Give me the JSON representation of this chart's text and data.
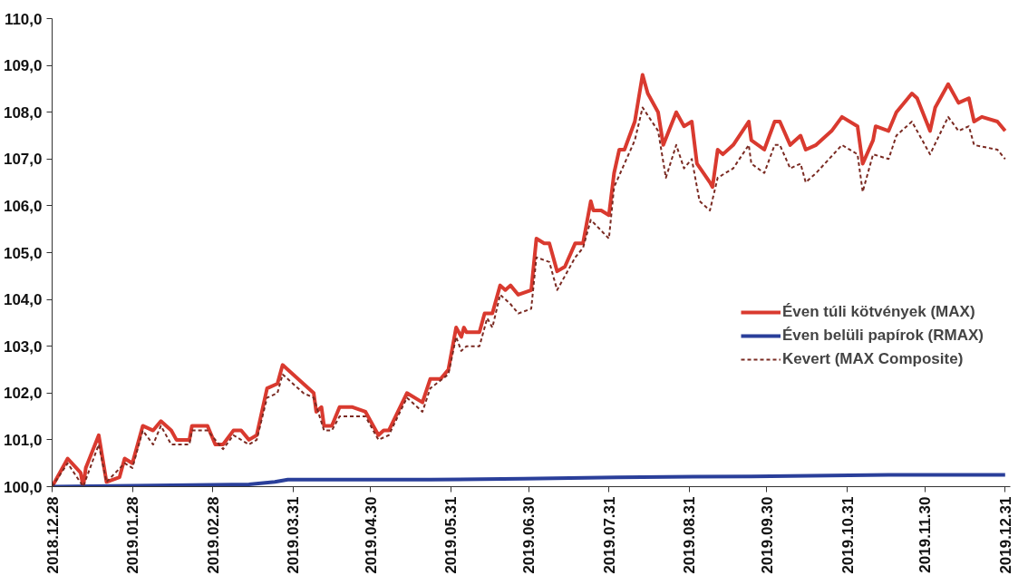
{
  "chart_data": {
    "type": "line",
    "ylim": [
      100,
      110
    ],
    "yticks": [
      {
        "value": 100,
        "label": "100,0"
      },
      {
        "value": 101,
        "label": "101,0"
      },
      {
        "value": 102,
        "label": "102,0"
      },
      {
        "value": 103,
        "label": "103,0"
      },
      {
        "value": 104,
        "label": "104,0"
      },
      {
        "value": 105,
        "label": "105,0"
      },
      {
        "value": 106,
        "label": "106,0"
      },
      {
        "value": 107,
        "label": "107,0"
      },
      {
        "value": 108,
        "label": "108,0"
      },
      {
        "value": 109,
        "label": "109,0"
      },
      {
        "value": 110,
        "label": "110,0"
      }
    ],
    "xlim": [
      "2018-12-28",
      "2020-01-02"
    ],
    "xticks": [
      {
        "value": "2018-12-28",
        "label": "2018.12.28"
      },
      {
        "value": "2019-01-28",
        "label": "2019.01.28"
      },
      {
        "value": "2019-02-28",
        "label": "2019.02.28"
      },
      {
        "value": "2019-03-31",
        "label": "2019.03.31"
      },
      {
        "value": "2019-04-30",
        "label": "2019.04.30"
      },
      {
        "value": "2019-05-31",
        "label": "2019.05.31"
      },
      {
        "value": "2019-06-30",
        "label": "2019.06.30"
      },
      {
        "value": "2019-07-31",
        "label": "2019.07.31"
      },
      {
        "value": "2019-08-31",
        "label": "2019.08.31"
      },
      {
        "value": "2019-09-30",
        "label": "2019.09.30"
      },
      {
        "value": "2019-10-31",
        "label": "2019.10.31"
      },
      {
        "value": "2019-11-30",
        "label": "2019.11.30"
      },
      {
        "value": "2019-12-31",
        "label": "2019.12.31"
      }
    ],
    "grid": false,
    "legend": "right",
    "series": [
      {
        "name": "Éven túli kötvények (MAX)",
        "color": "#d93a2f",
        "line_style": "solid",
        "x": [
          "2018-12-28",
          "2019-01-03",
          "2019-01-08",
          "2019-01-09",
          "2019-01-10",
          "2019-01-15",
          "2019-01-18",
          "2019-01-23",
          "2019-01-25",
          "2019-01-28",
          "2019-02-01",
          "2019-02-05",
          "2019-02-08",
          "2019-02-12",
          "2019-02-14",
          "2019-02-19",
          "2019-02-20",
          "2019-02-26",
          "2019-03-01",
          "2019-03-04",
          "2019-03-08",
          "2019-03-11",
          "2019-03-14",
          "2019-03-17",
          "2019-03-21",
          "2019-03-25",
          "2019-03-27",
          "2019-03-29",
          "2019-04-04",
          "2019-04-08",
          "2019-04-09",
          "2019-04-11",
          "2019-04-12",
          "2019-04-15",
          "2019-04-18",
          "2019-04-23",
          "2019-04-28",
          "2019-05-03",
          "2019-05-05",
          "2019-05-07",
          "2019-05-14",
          "2019-05-20",
          "2019-05-23",
          "2019-05-27",
          "2019-05-30",
          "2019-06-02",
          "2019-06-04",
          "2019-06-05",
          "2019-06-06",
          "2019-06-11",
          "2019-06-13",
          "2019-06-16",
          "2019-06-19",
          "2019-06-21",
          "2019-06-23",
          "2019-06-26",
          "2019-07-01",
          "2019-07-03",
          "2019-07-06",
          "2019-07-08",
          "2019-07-11",
          "2019-07-14",
          "2019-07-18",
          "2019-07-21",
          "2019-07-24",
          "2019-07-25",
          "2019-07-28",
          "2019-07-31",
          "2019-08-02",
          "2019-08-04",
          "2019-08-06",
          "2019-08-10",
          "2019-08-13",
          "2019-08-15",
          "2019-08-19",
          "2019-08-21",
          "2019-08-26",
          "2019-08-29",
          "2019-09-01",
          "2019-09-03",
          "2019-09-08",
          "2019-09-09",
          "2019-09-11",
          "2019-09-13",
          "2019-09-17",
          "2019-09-23",
          "2019-09-24",
          "2019-09-29",
          "2019-10-03",
          "2019-10-05",
          "2019-10-09",
          "2019-10-13",
          "2019-10-15",
          "2019-10-19",
          "2019-10-25",
          "2019-10-29",
          "2019-11-04",
          "2019-11-06",
          "2019-11-10",
          "2019-11-11",
          "2019-11-16",
          "2019-11-19",
          "2019-11-25",
          "2019-11-27",
          "2019-12-02",
          "2019-12-04",
          "2019-12-09",
          "2019-12-13",
          "2019-12-17",
          "2019-12-19",
          "2019-12-22",
          "2019-12-28",
          "2019-12-31"
        ],
        "values": [
          100.0,
          100.6,
          100.3,
          100.0,
          100.4,
          101.1,
          100.1,
          100.2,
          100.6,
          100.5,
          101.3,
          101.2,
          101.4,
          101.2,
          101.0,
          101.0,
          101.3,
          101.3,
          100.9,
          100.9,
          101.2,
          101.2,
          101.0,
          101.1,
          102.1,
          102.2,
          102.6,
          102.5,
          102.2,
          102.0,
          101.6,
          101.7,
          101.3,
          101.3,
          101.7,
          101.7,
          101.6,
          101.1,
          101.2,
          101.2,
          102.0,
          101.8,
          102.3,
          102.3,
          102.5,
          103.4,
          103.2,
          103.4,
          103.3,
          103.3,
          103.7,
          103.7,
          104.3,
          104.2,
          104.3,
          104.1,
          104.2,
          105.3,
          105.2,
          105.2,
          104.6,
          104.7,
          105.2,
          105.2,
          106.1,
          105.9,
          105.9,
          105.8,
          106.7,
          107.2,
          107.2,
          107.8,
          108.8,
          108.4,
          108.0,
          107.3,
          108.0,
          107.7,
          107.8,
          106.9,
          106.5,
          106.4,
          107.2,
          107.1,
          107.3,
          107.8,
          107.4,
          107.2,
          107.8,
          107.8,
          107.3,
          107.5,
          107.2,
          107.3,
          107.6,
          107.9,
          107.7,
          106.9,
          107.4,
          107.7,
          107.6,
          108.0,
          108.4,
          108.3,
          107.6,
          108.1,
          108.6,
          108.2,
          108.3,
          107.8,
          107.9,
          107.8,
          107.6
        ]
      },
      {
        "name": "Éven belüli papírok (RMAX)",
        "color": "#2a3f9a",
        "line_style": "solid",
        "x": [
          "2018-12-28",
          "2019-03-14",
          "2019-03-24",
          "2019-03-29",
          "2019-05-23",
          "2019-06-28",
          "2019-08-03",
          "2019-09-24",
          "2019-11-16",
          "2019-12-31"
        ],
        "values": [
          100.0,
          100.05,
          100.1,
          100.15,
          100.15,
          100.17,
          100.2,
          100.22,
          100.25,
          100.25
        ]
      },
      {
        "name": "Kevert (MAX Composite)",
        "color": "#7a2a22",
        "line_style": "dashed",
        "x": [
          "2018-12-28",
          "2019-01-03",
          "2019-01-09",
          "2019-01-15",
          "2019-01-18",
          "2019-01-25",
          "2019-01-28",
          "2019-02-01",
          "2019-02-05",
          "2019-02-08",
          "2019-02-12",
          "2019-02-19",
          "2019-02-20",
          "2019-02-26",
          "2019-03-04",
          "2019-03-08",
          "2019-03-14",
          "2019-03-17",
          "2019-03-21",
          "2019-03-25",
          "2019-03-27",
          "2019-04-04",
          "2019-04-08",
          "2019-04-12",
          "2019-04-15",
          "2019-04-18",
          "2019-04-28",
          "2019-05-03",
          "2019-05-07",
          "2019-05-14",
          "2019-05-20",
          "2019-05-23",
          "2019-05-30",
          "2019-06-02",
          "2019-06-04",
          "2019-06-06",
          "2019-06-11",
          "2019-06-14",
          "2019-06-16",
          "2019-06-19",
          "2019-06-23",
          "2019-06-26",
          "2019-07-01",
          "2019-07-03",
          "2019-07-08",
          "2019-07-11",
          "2019-07-18",
          "2019-07-21",
          "2019-07-24",
          "2019-07-31",
          "2019-08-02",
          "2019-08-10",
          "2019-08-13",
          "2019-08-19",
          "2019-08-22",
          "2019-08-26",
          "2019-08-29",
          "2019-09-01",
          "2019-09-04",
          "2019-09-08",
          "2019-09-11",
          "2019-09-17",
          "2019-09-23",
          "2019-09-24",
          "2019-09-29",
          "2019-10-03",
          "2019-10-05",
          "2019-10-09",
          "2019-10-13",
          "2019-10-15",
          "2019-10-19",
          "2019-10-29",
          "2019-11-04",
          "2019-11-06",
          "2019-11-10",
          "2019-11-16",
          "2019-11-19",
          "2019-11-25",
          "2019-12-02",
          "2019-12-09",
          "2019-12-13",
          "2019-12-17",
          "2019-12-19",
          "2019-12-28",
          "2019-12-31"
        ],
        "values": [
          100.0,
          100.5,
          100.0,
          100.9,
          100.1,
          100.5,
          100.4,
          101.2,
          100.9,
          101.3,
          100.9,
          100.9,
          101.2,
          101.2,
          100.8,
          101.1,
          100.9,
          101.0,
          101.9,
          102.0,
          102.4,
          102.0,
          101.9,
          101.2,
          101.2,
          101.5,
          101.5,
          101.0,
          101.1,
          101.9,
          101.6,
          102.1,
          102.4,
          103.2,
          102.9,
          103.0,
          103.0,
          103.6,
          103.4,
          104.1,
          103.9,
          103.7,
          103.8,
          104.9,
          104.8,
          104.2,
          104.9,
          105.1,
          105.7,
          105.3,
          106.4,
          107.4,
          108.1,
          107.6,
          106.6,
          107.3,
          106.8,
          107.0,
          106.1,
          105.9,
          106.6,
          106.8,
          107.3,
          106.9,
          106.7,
          107.3,
          107.3,
          106.8,
          106.9,
          106.5,
          106.7,
          107.3,
          107.1,
          106.3,
          107.1,
          107.0,
          107.5,
          107.8,
          107.1,
          107.9,
          107.6,
          107.7,
          107.3,
          107.2,
          107.0
        ]
      }
    ]
  }
}
